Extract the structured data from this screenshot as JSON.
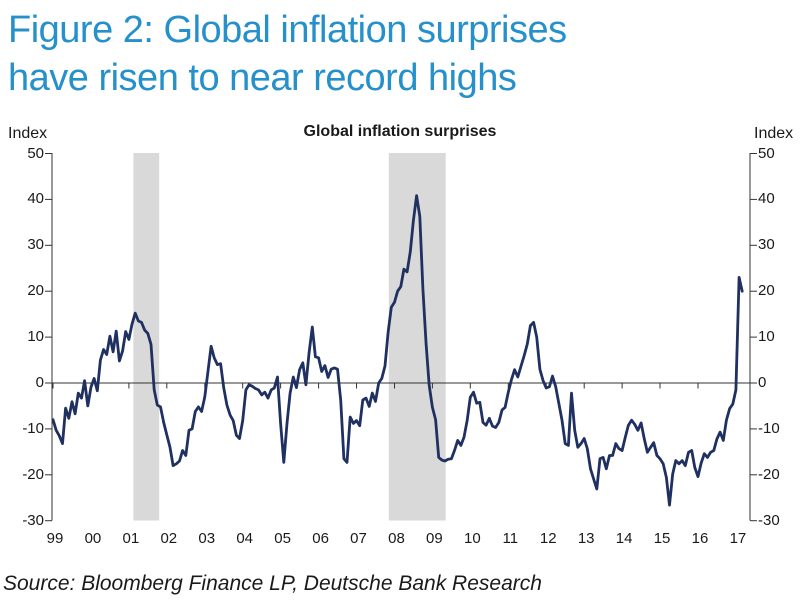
{
  "figure": {
    "title_line1": "Figure 2: Global inflation surprises",
    "title_line2": "have risen to near record highs",
    "title_color": "#2590c9",
    "source": "Source: Bloomberg Finance LP, Deutsche Bank Research"
  },
  "chart_data": {
    "type": "line",
    "title": "Global inflation surprises",
    "y_axis_label_left": "Index",
    "y_axis_label_right": "Index",
    "ylim": [
      -30,
      50
    ],
    "y_ticks": [
      50,
      40,
      30,
      20,
      10,
      0,
      -10,
      -20,
      -30
    ],
    "x_tick_labels": [
      "99",
      "00",
      "01",
      "02",
      "03",
      "04",
      "05",
      "06",
      "07",
      "08",
      "09",
      "10",
      "11",
      "12",
      "13",
      "14",
      "15",
      "16",
      "17"
    ],
    "x_start_year": 1999,
    "points_per_year": 12,
    "grid": false,
    "legend": "none",
    "axis_color": "#333333",
    "band_color": "#d9d9d9",
    "shaded_bands": [
      {
        "name": "recession-2001",
        "from": 2001.12,
        "to": 2001.8
      },
      {
        "name": "recession-2008-09",
        "from": 2007.85,
        "to": 2009.35
      }
    ],
    "series": [
      {
        "name": "Global inflation surprise index",
        "color": "#1f3061",
        "values": [
          -8.0,
          -10.3,
          -11.5,
          -13.2,
          -5.5,
          -7.7,
          -4.1,
          -6.7,
          -2.2,
          -3.3,
          0.5,
          -5.0,
          -1.0,
          1.0,
          -1.7,
          5.0,
          7.3,
          6.2,
          10.2,
          6.8,
          11.3,
          4.8,
          7.0,
          11.2,
          9.5,
          12.8,
          15.2,
          13.5,
          13.2,
          11.5,
          10.8,
          8.4,
          -1.5,
          -4.8,
          -5.2,
          -8.6,
          -11.3,
          -14.0,
          -18.0,
          -17.6,
          -17.0,
          -14.7,
          -15.8,
          -10.3,
          -10.0,
          -6.2,
          -5.2,
          -6.2,
          -3.0,
          2.4,
          8.0,
          5.5,
          4.0,
          4.2,
          -1.0,
          -4.8,
          -7.0,
          -8.2,
          -11.4,
          -12.1,
          -8.2,
          -1.5,
          -0.4,
          -0.7,
          -1.2,
          -1.5,
          -2.6,
          -2.0,
          -3.3,
          -1.5,
          -1.1,
          1.3,
          -8.8,
          -17.3,
          -8.8,
          -2.2,
          1.3,
          -1.0,
          2.9,
          4.4,
          -0.4,
          6.6,
          12.2,
          5.7,
          5.5,
          2.5,
          3.8,
          1.2,
          3.0,
          3.3,
          3.0,
          -3.7,
          -16.5,
          -17.3,
          -7.4,
          -8.8,
          -8.2,
          -9.3,
          -3.7,
          -3.3,
          -5.1,
          -2.2,
          -4.0,
          0.0,
          1.0,
          3.7,
          11.0,
          16.5,
          17.6,
          20.0,
          21.0,
          24.8,
          24.2,
          28.6,
          35.4,
          40.8,
          36.3,
          20.5,
          8.5,
          -0.5,
          -5.3,
          -8.0,
          -16.2,
          -16.8,
          -17.0,
          -16.6,
          -16.5,
          -14.7,
          -12.5,
          -13.6,
          -11.8,
          -8.1,
          -3.1,
          -2.0,
          -4.4,
          -4.2,
          -8.6,
          -9.2,
          -7.7,
          -9.4,
          -9.7,
          -8.6,
          -5.9,
          -5.3,
          -2.0,
          0.7,
          2.9,
          1.3,
          3.6,
          5.9,
          8.5,
          12.5,
          13.2,
          10.0,
          3.0,
          0.5,
          -1.1,
          -0.8,
          1.5,
          -0.8,
          -4.5,
          -8.1,
          -13.2,
          -13.6,
          -2.2,
          -10.3,
          -14.0,
          -13.2,
          -12.1,
          -14.3,
          -18.7,
          -20.9,
          -23.1,
          -16.5,
          -16.2,
          -18.7,
          -15.8,
          -15.8,
          -13.2,
          -14.3,
          -14.7,
          -11.8,
          -9.2,
          -8.1,
          -9.0,
          -10.3,
          -8.7,
          -12.1,
          -15.1,
          -14.0,
          -13.0,
          -15.8,
          -16.5,
          -17.6,
          -20.6,
          -26.6,
          -19.8,
          -16.9,
          -17.6,
          -16.9,
          -18.0,
          -15.1,
          -14.7,
          -18.4,
          -20.4,
          -17.5,
          -15.4,
          -16.2,
          -15.1,
          -14.7,
          -12.2,
          -10.7,
          -12.5,
          -8.1,
          -5.6,
          -4.6,
          -1.5,
          23.0,
          20.0
        ]
      }
    ]
  }
}
